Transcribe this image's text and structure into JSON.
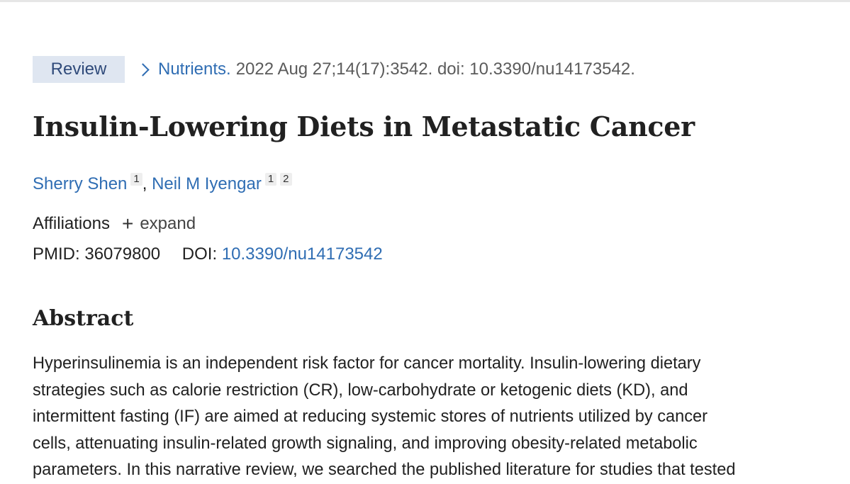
{
  "citation": {
    "badge": "Review",
    "journal": "Nutrients.",
    "details": "2022 Aug 27;14(17):3542. doi: 10.3390/nu14173542."
  },
  "title": "Insulin-Lowering Diets in Metastatic Cancer",
  "authors": [
    {
      "name": "Sherry Shen",
      "affiliations": [
        "1"
      ]
    },
    {
      "name": "Neil M Iyengar",
      "affiliations": [
        "1",
        "2"
      ]
    }
  ],
  "author_separator": ",",
  "affiliations": {
    "label": "Affiliations",
    "toggle": "expand"
  },
  "identifiers": {
    "pmid_label": "PMID:",
    "pmid": "36079800",
    "doi_label": "DOI:",
    "doi": "10.3390/nu14173542"
  },
  "abstract": {
    "heading": "Abstract",
    "lines": [
      "Hyperinsulinemia is an independent risk factor for cancer mortality. Insulin-lowering dietary",
      "strategies such as calorie restriction (CR), low-carbohydrate or ketogenic diets (KD), and",
      "intermittent fasting (IF) are aimed at reducing systemic stores of nutrients utilized by cancer",
      "cells, attenuating insulin-related growth signaling, and improving obesity-related metabolic",
      "parameters. In this narrative review, we searched the published literature for studies that tested"
    ]
  }
}
